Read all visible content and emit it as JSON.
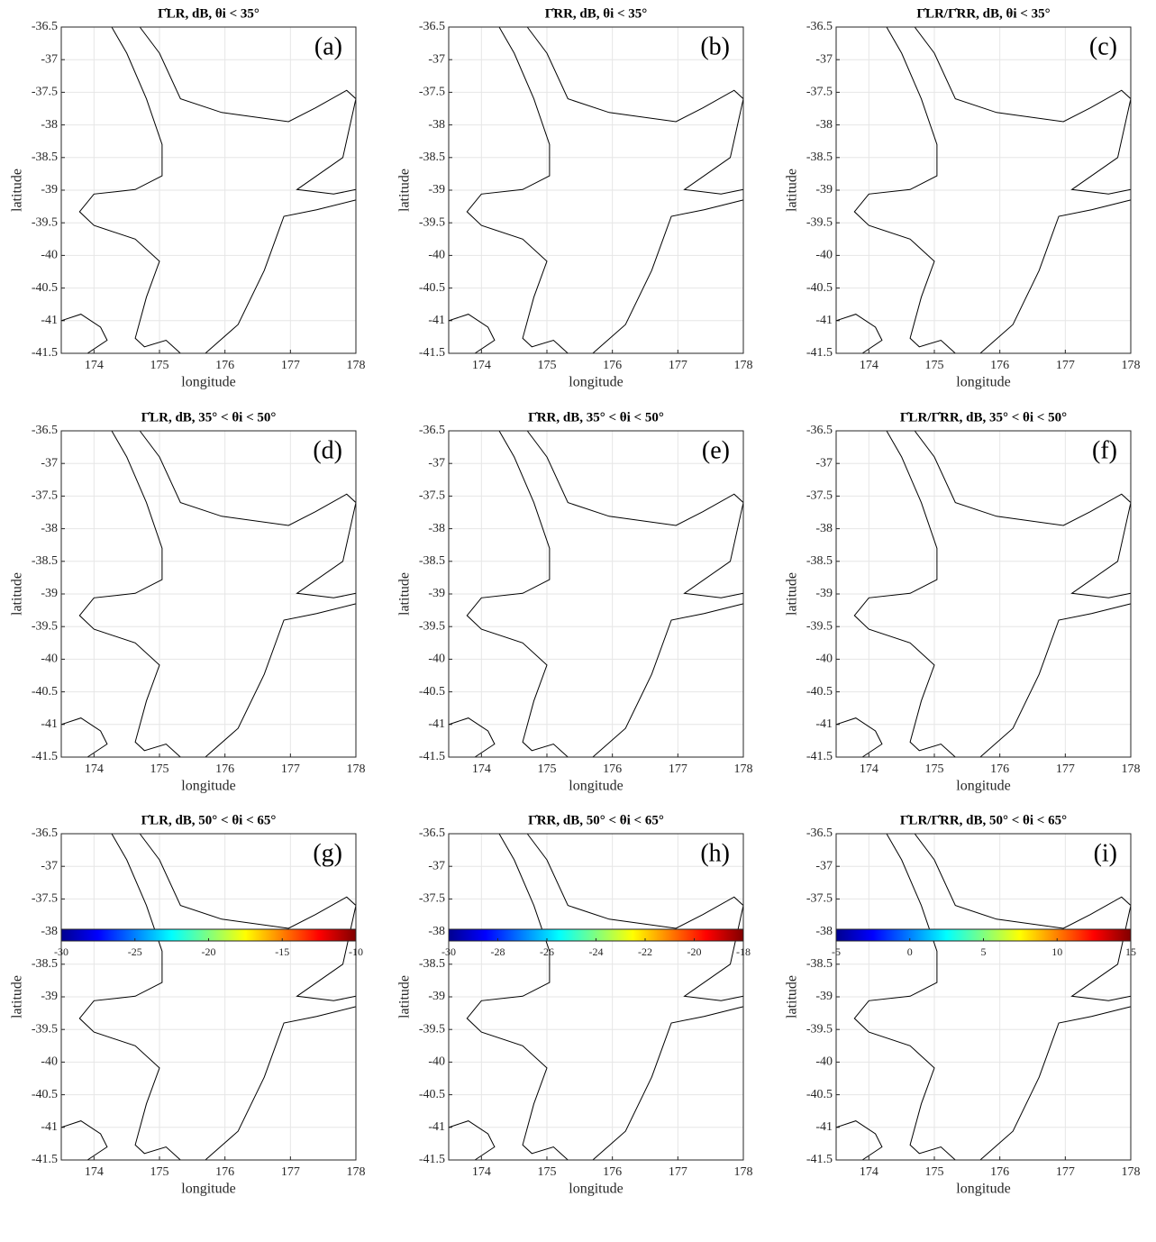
{
  "chart_data": [
    {
      "type": "map",
      "title": "Γ̂LR, dB,  θi < 35°",
      "panel_label": "(a)",
      "xlabel": "longitude",
      "ylabel": "latitude",
      "xlim": [
        173.5,
        178
      ],
      "ylim": [
        -41.5,
        -36.5
      ],
      "xticks": [
        174,
        175,
        176,
        177,
        178
      ],
      "yticks": [
        -41.5,
        -41,
        -40.5,
        -40,
        -39.5,
        -39,
        -38.5,
        -38,
        -37.5,
        -37,
        -36.5
      ],
      "grid": true
    },
    {
      "type": "map",
      "title": "Γ̂RR, dB,  θi < 35°",
      "panel_label": "(b)",
      "xlabel": "longitude",
      "ylabel": "latitude",
      "xlim": [
        173.5,
        178
      ],
      "ylim": [
        -41.5,
        -36.5
      ],
      "xticks": [
        174,
        175,
        176,
        177,
        178
      ],
      "yticks": [
        -41.5,
        -41,
        -40.5,
        -40,
        -39.5,
        -39,
        -38.5,
        -38,
        -37.5,
        -37,
        -36.5
      ],
      "grid": true
    },
    {
      "type": "map",
      "title": "Γ̂LR/Γ̂RR, dB,  θi < 35°",
      "panel_label": "(c)",
      "xlabel": "longitude",
      "ylabel": "latitude",
      "xlim": [
        173.5,
        178
      ],
      "ylim": [
        -41.5,
        -36.5
      ],
      "xticks": [
        174,
        175,
        176,
        177,
        178
      ],
      "yticks": [
        -41.5,
        -41,
        -40.5,
        -40,
        -39.5,
        -39,
        -38.5,
        -38,
        -37.5,
        -37,
        -36.5
      ],
      "grid": true
    },
    {
      "type": "map",
      "title": "Γ̂LR, dB,  35° < θi < 50°",
      "panel_label": "(d)",
      "xlabel": "longitude",
      "ylabel": "latitude",
      "xlim": [
        173.5,
        178
      ],
      "ylim": [
        -41.5,
        -36.5
      ],
      "xticks": [
        174,
        175,
        176,
        177,
        178
      ],
      "yticks": [
        -41.5,
        -41,
        -40.5,
        -40,
        -39.5,
        -39,
        -38.5,
        -38,
        -37.5,
        -37,
        -36.5
      ],
      "grid": true
    },
    {
      "type": "map",
      "title": "Γ̂RR, dB,  35° < θi < 50°",
      "panel_label": "(e)",
      "xlabel": "longitude",
      "ylabel": "latitude",
      "xlim": [
        173.5,
        178
      ],
      "ylim": [
        -41.5,
        -36.5
      ],
      "xticks": [
        174,
        175,
        176,
        177,
        178
      ],
      "yticks": [
        -41.5,
        -41,
        -40.5,
        -40,
        -39.5,
        -39,
        -38.5,
        -38,
        -37.5,
        -37,
        -36.5
      ],
      "grid": true
    },
    {
      "type": "map",
      "title": "Γ̂LR/Γ̂RR, dB,  35° < θi < 50°",
      "panel_label": "(f)",
      "xlabel": "longitude",
      "ylabel": "latitude",
      "xlim": [
        173.5,
        178
      ],
      "ylim": [
        -41.5,
        -36.5
      ],
      "xticks": [
        174,
        175,
        176,
        177,
        178
      ],
      "yticks": [
        -41.5,
        -41,
        -40.5,
        -40,
        -39.5,
        -39,
        -38.5,
        -38,
        -37.5,
        -37,
        -36.5
      ],
      "grid": true
    },
    {
      "type": "map",
      "title": "Γ̂LR, dB,  50° < θi < 65°",
      "panel_label": "(g)",
      "xlabel": "longitude",
      "ylabel": "latitude",
      "xlim": [
        173.5,
        178
      ],
      "ylim": [
        -41.5,
        -36.5
      ],
      "xticks": [
        174,
        175,
        176,
        177,
        178
      ],
      "yticks": [
        -41.5,
        -41,
        -40.5,
        -40,
        -39.5,
        -39,
        -38.5,
        -38,
        -37.5,
        -37,
        -36.5
      ],
      "grid": true
    },
    {
      "type": "map",
      "title": "Γ̂RR, dB,  50° < θi < 65°",
      "panel_label": "(h)",
      "xlabel": "longitude",
      "ylabel": "latitude",
      "xlim": [
        173.5,
        178
      ],
      "ylim": [
        -41.5,
        -36.5
      ],
      "xticks": [
        174,
        175,
        176,
        177,
        178
      ],
      "yticks": [
        -41.5,
        -41,
        -40.5,
        -40,
        -39.5,
        -39,
        -38.5,
        -38,
        -37.5,
        -37,
        -36.5
      ],
      "grid": true
    },
    {
      "type": "map",
      "title": "Γ̂LR/Γ̂RR, dB,  50° < θi < 65°",
      "panel_label": "(i)",
      "xlabel": "longitude",
      "ylabel": "latitude",
      "xlim": [
        173.5,
        178
      ],
      "ylim": [
        -41.5,
        -36.5
      ],
      "xticks": [
        174,
        175,
        176,
        177,
        178
      ],
      "yticks": [
        -41.5,
        -41,
        -40.5,
        -40,
        -39.5,
        -39,
        -38.5,
        -38,
        -37.5,
        -37,
        -36.5
      ],
      "grid": true
    },
    {
      "type": "colorbar",
      "colormap": "jet",
      "xlim": [
        -30,
        -10
      ],
      "xticks": [
        -30,
        -25,
        -20,
        -15,
        -10
      ]
    },
    {
      "type": "colorbar",
      "colormap": "jet",
      "xlim": [
        -30,
        -18
      ],
      "xticks": [
        -30,
        -28,
        -26,
        -24,
        -22,
        -20,
        -18
      ]
    },
    {
      "type": "colorbar",
      "colormap": "jet",
      "xlim": [
        -5,
        15
      ],
      "xticks": [
        -5,
        0,
        5,
        10,
        15
      ]
    }
  ]
}
